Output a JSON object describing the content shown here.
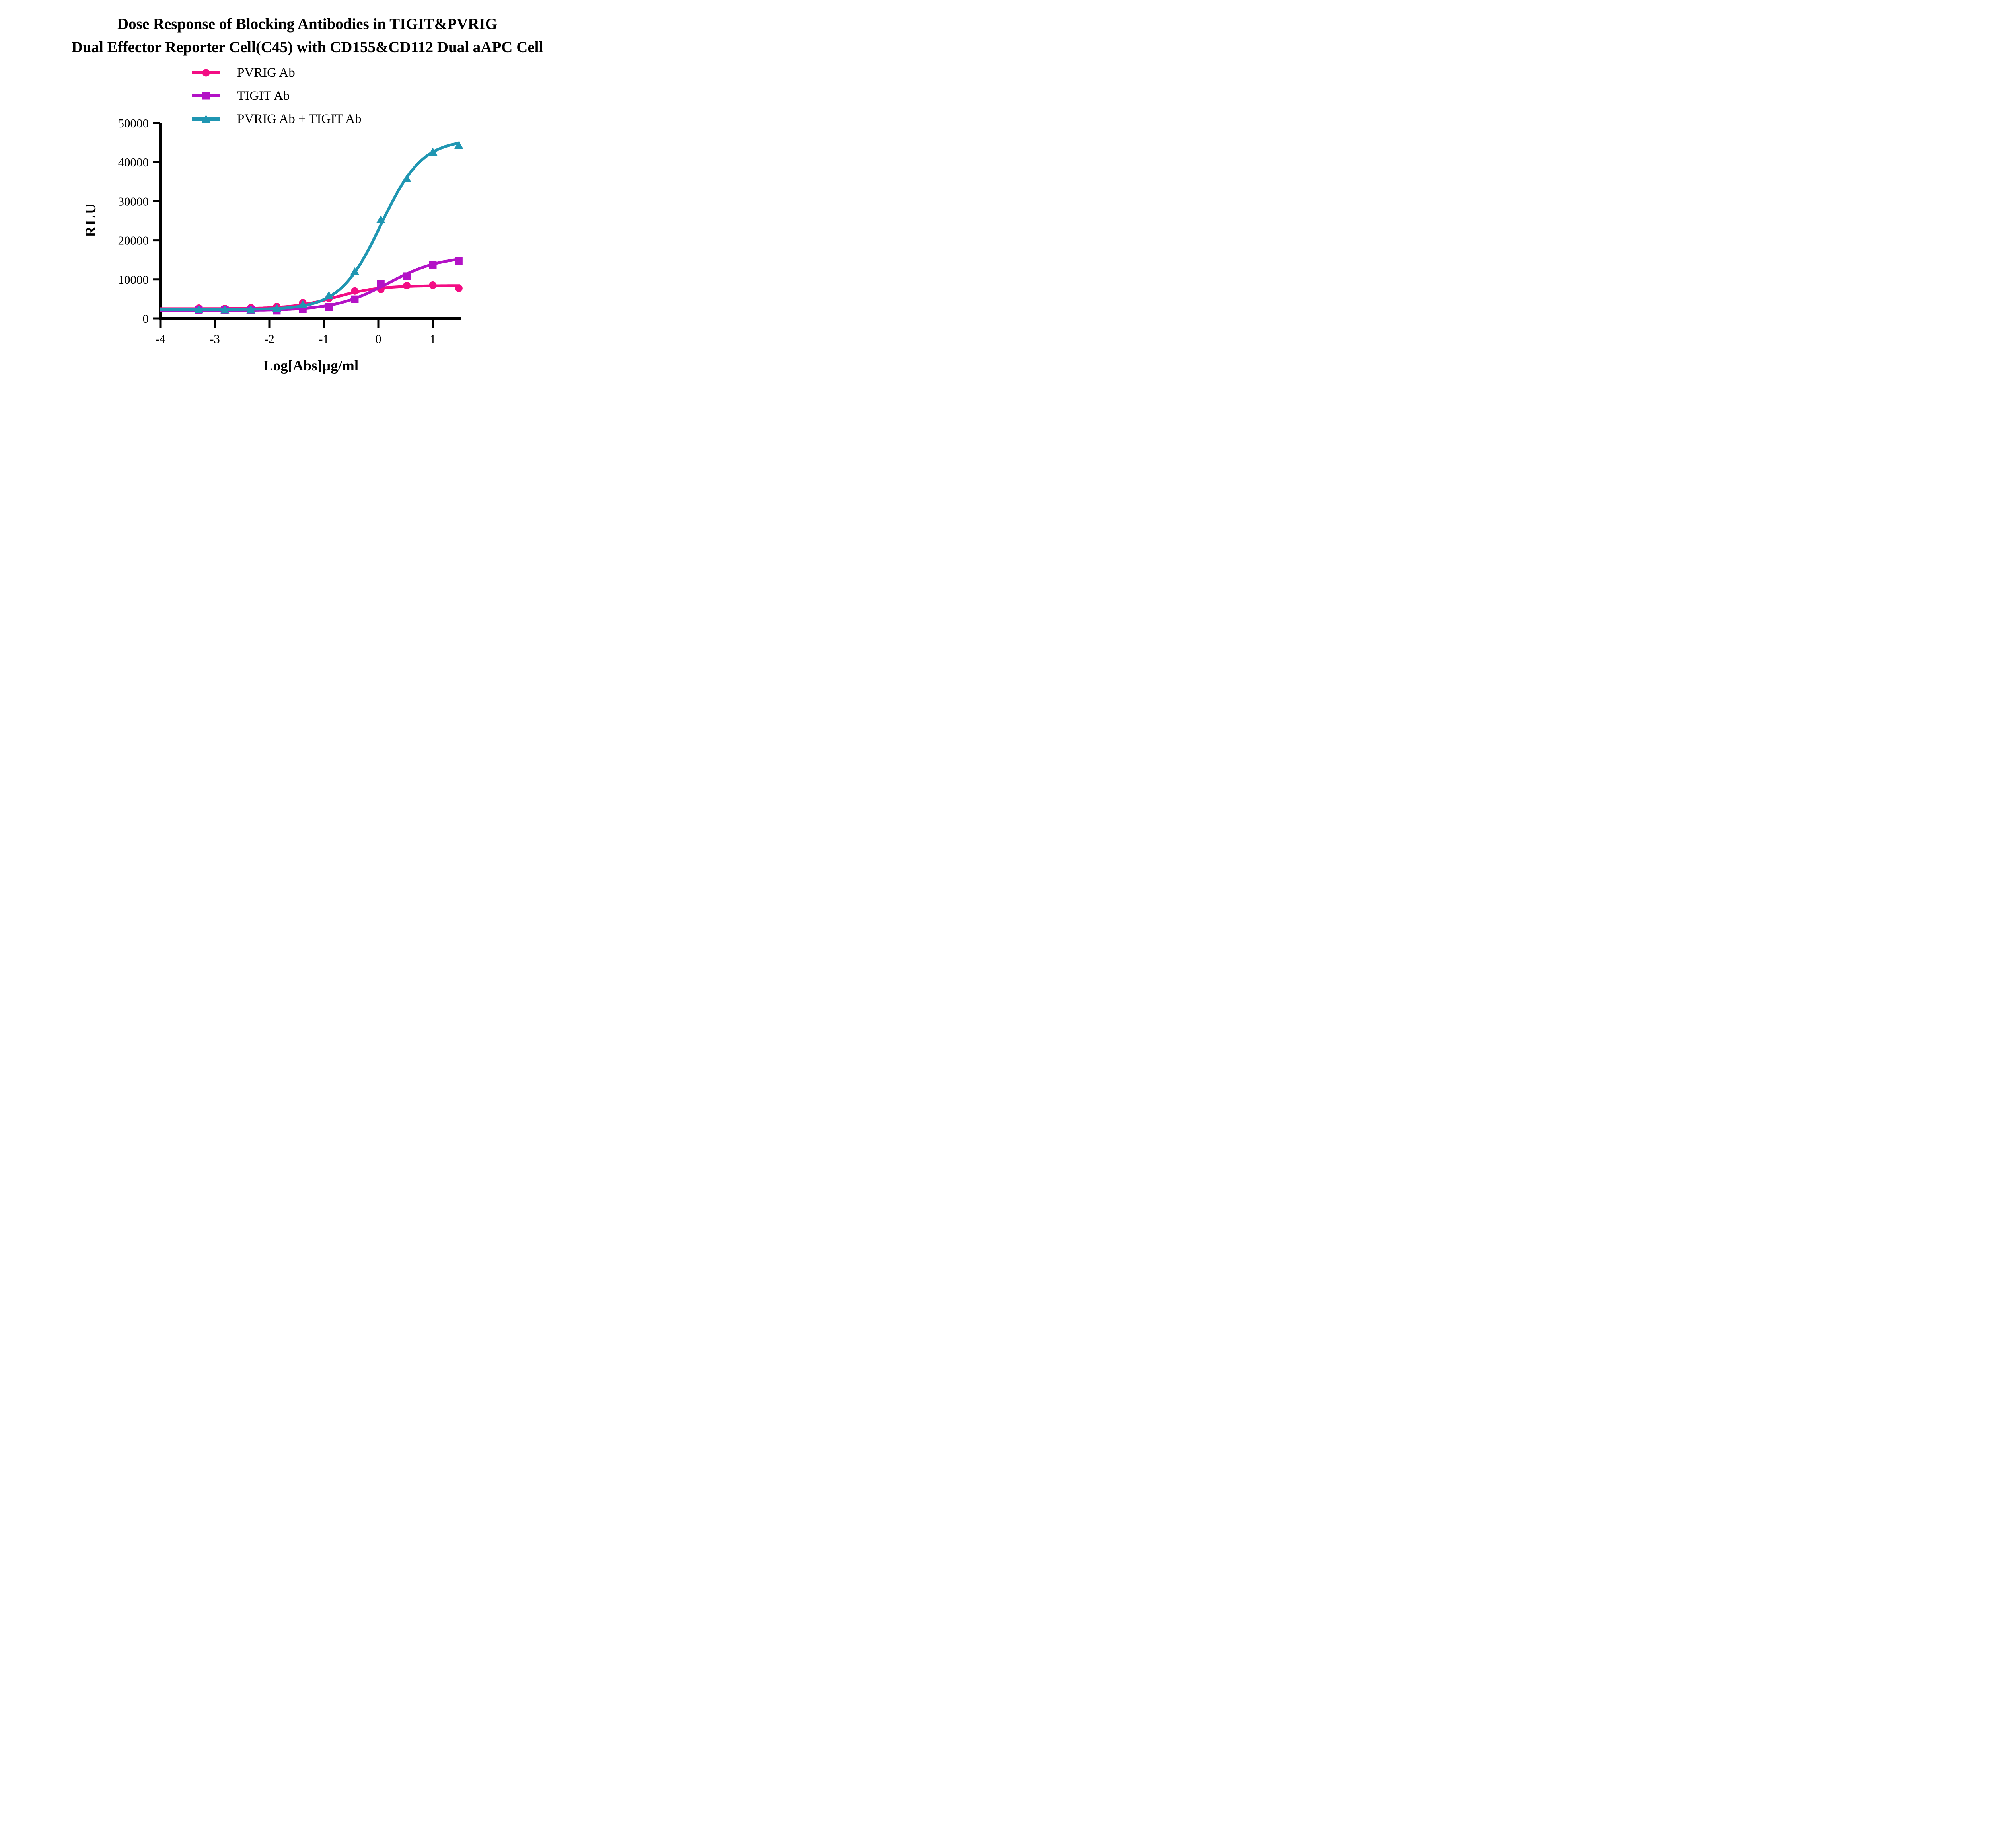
{
  "title": {
    "line1": "Dose Response of Blocking Antibodies in TIGIT&PVRIG",
    "line2": "Dual Effector Reporter Cell(C45) with CD155&CD112 Dual aAPC Cell"
  },
  "chart_data": {
    "type": "scatter",
    "title": "Dose Response of Blocking Antibodies in TIGIT&PVRIG Dual Effector Reporter Cell(C45) with CD155&CD112 Dual aAPC Cell",
    "xlabel": "Log[Abs]µg/ml",
    "ylabel": "RLU",
    "grid": false,
    "legend_position": "top-center",
    "background_color": "#FFFFFF",
    "axis_color": "#000000",
    "x_axis": {
      "min": -4,
      "max": 1.526,
      "ticks": [
        -4,
        -3,
        -2,
        -1,
        0,
        1
      ],
      "tick_labels": [
        "-4",
        "-3",
        "-2",
        "-1",
        "0",
        "1"
      ]
    },
    "y_axis": {
      "min": 0,
      "max": 50000,
      "ticks": [
        0,
        10000,
        20000,
        30000,
        40000,
        50000
      ],
      "tick_labels": [
        "0",
        "10000",
        "20000",
        "30000",
        "40000",
        "50000"
      ]
    },
    "x": [
      -3.293,
      -2.816,
      -2.339,
      -1.862,
      -1.385,
      -0.908,
      -0.431,
      0.046,
      0.523,
      1.0,
      1.477
    ],
    "series": [
      {
        "name": "PVRIG Ab",
        "color": "#F30D84",
        "marker": "circle",
        "values": [
          2600,
          2500,
          2700,
          3000,
          4000,
          5100,
          7000,
          7400,
          8400,
          8500,
          7700
        ],
        "fit": {
          "bottom": 2450,
          "top": 8400,
          "logec50": -0.78,
          "hill": 1.1
        }
      },
      {
        "name": "TIGIT Ab",
        "color": "#B312C6",
        "marker": "square",
        "values": [
          2150,
          2100,
          2100,
          1950,
          2350,
          2900,
          4870,
          8900,
          10800,
          13700,
          14700
        ],
        "fit": {
          "bottom": 2000,
          "top": 16000,
          "logec50": 0.18,
          "hill": 0.9
        }
      },
      {
        "name": "PVRIG Ab + TIGIT Ab",
        "color": "#1F96B2",
        "marker": "triangle",
        "values": [
          2300,
          2250,
          2250,
          2600,
          3600,
          5900,
          12000,
          25300,
          35800,
          42600,
          44300
        ],
        "fit": {
          "bottom": 2250,
          "top": 45800,
          "logec50": 0.05,
          "hill": 1.15
        }
      }
    ]
  }
}
